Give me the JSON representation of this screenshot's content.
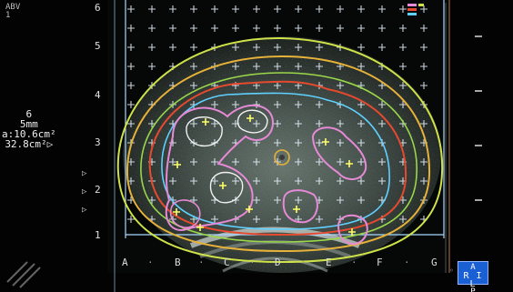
{
  "readout": {
    "top_left_1": "ABV",
    "top_left_2": "1",
    "plane": "6",
    "spacing": "5mm",
    "area_1": "a:10.6cm²",
    "area_2": "32.8cm²▷"
  },
  "grid_cols": [
    "A",
    "B",
    "C",
    "D",
    "E",
    "F",
    "G"
  ],
  "grid_rows": [
    "6",
    "5",
    "4",
    "3",
    "2",
    "1"
  ],
  "orientation": {
    "top": "A",
    "middle": "R I L",
    "bottom": "P"
  },
  "colors": {
    "grid": "#e8f4ff",
    "isodose_outer": "#cfe24a",
    "isodose_orange": "#e6b23a",
    "isodose_red": "#e64a2e",
    "isodose_pink": "#e68ad6",
    "prostate_outline": "#5fd0ff",
    "seed_mark": "#ffff66",
    "frame": "#a8d8ff"
  }
}
